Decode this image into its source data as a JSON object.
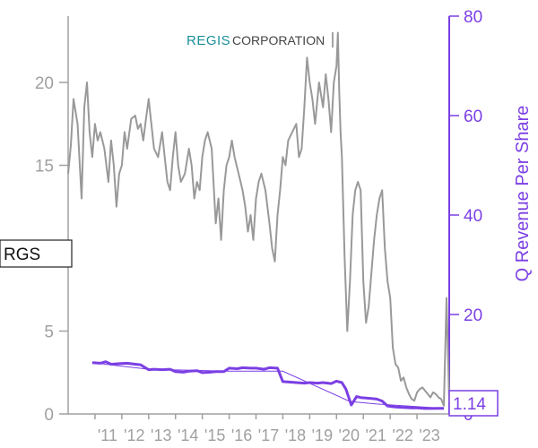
{
  "logo": {
    "brand": "REGIS",
    "suffix": "CORPORATION"
  },
  "ticker": "RGS",
  "colors": {
    "price": "#999999",
    "revenue": "#7b3fe4",
    "axis_left": "#a0a0a0",
    "axis_right": "#7b3fe4"
  },
  "chart_data": {
    "type": "line",
    "title": "",
    "x_tick_labels": [
      "'11",
      "'12",
      "'13",
      "'14",
      "'15",
      "'16",
      "'17",
      "'18",
      "'19",
      "'20",
      "'21",
      "'22",
      "'23"
    ],
    "x_range": [
      2010.0,
      2024.2
    ],
    "left_axis": {
      "label": "",
      "range": [
        0,
        24
      ],
      "ticks": [
        0,
        5,
        15,
        20
      ]
    },
    "right_axis": {
      "label": "Q Revenue Per Share",
      "range": [
        0,
        80
      ],
      "ticks": [
        0,
        20,
        40,
        60,
        80
      ]
    },
    "series": [
      {
        "axis": "left",
        "x": [
          2010.0,
          2010.1,
          2010.2,
          2010.35,
          2010.5,
          2010.6,
          2010.7,
          2010.8,
          2010.9,
          2011.0,
          2011.1,
          2011.2,
          2011.35,
          2011.5,
          2011.6,
          2011.7,
          2011.8,
          2011.9,
          2012.0,
          2012.1,
          2012.2,
          2012.35,
          2012.5,
          2012.6,
          2012.7,
          2012.8,
          2012.9,
          2013.0,
          2013.1,
          2013.2,
          2013.35,
          2013.5,
          2013.6,
          2013.7,
          2013.8,
          2013.9,
          2014.0,
          2014.1,
          2014.2,
          2014.35,
          2014.5,
          2014.6,
          2014.7,
          2014.8,
          2014.9,
          2015.0,
          2015.1,
          2015.2,
          2015.35,
          2015.5,
          2015.6,
          2015.7,
          2015.8,
          2015.9,
          2016.0,
          2016.1,
          2016.2,
          2016.35,
          2016.5,
          2016.6,
          2016.7,
          2016.8,
          2016.9,
          2017.0,
          2017.1,
          2017.2,
          2017.35,
          2017.5,
          2017.6,
          2017.7,
          2017.8,
          2017.9,
          2018.0,
          2018.1,
          2018.2,
          2018.35,
          2018.5,
          2018.6,
          2018.7,
          2018.8,
          2018.9,
          2019.0,
          2019.1,
          2019.2,
          2019.35,
          2019.5,
          2019.6,
          2019.7,
          2019.8,
          2019.9,
          2020.0,
          2020.05,
          2020.1,
          2020.15,
          2020.2,
          2020.3,
          2020.4,
          2020.5,
          2020.6,
          2020.7,
          2020.8,
          2020.9,
          2021.0,
          2021.1,
          2021.2,
          2021.3,
          2021.4,
          2021.5,
          2021.6,
          2021.7,
          2021.8,
          2021.9,
          2022.0,
          2022.1,
          2022.2,
          2022.3,
          2022.4,
          2022.5,
          2022.6,
          2022.7,
          2022.8,
          2022.9,
          2023.0,
          2023.1,
          2023.2,
          2023.3,
          2023.4,
          2023.5,
          2023.6,
          2023.7,
          2023.8,
          2023.9,
          2024.0,
          2024.1,
          2024.2
        ],
        "values": [
          14.5,
          16.2,
          19.0,
          17.5,
          13.0,
          18.5,
          20.0,
          17.0,
          15.5,
          17.5,
          16.5,
          17.0,
          16.0,
          14.0,
          16.5,
          15.0,
          12.5,
          14.5,
          15.0,
          17.0,
          16.0,
          17.8,
          18.0,
          17.2,
          17.5,
          16.5,
          17.8,
          19.0,
          17.5,
          16.0,
          15.5,
          17.0,
          15.5,
          14.0,
          13.5,
          15.5,
          17.0,
          15.0,
          14.0,
          14.5,
          16.0,
          15.0,
          13.0,
          14.0,
          13.5,
          15.5,
          16.5,
          17.0,
          16.0,
          11.5,
          13.0,
          10.5,
          13.5,
          15.0,
          15.5,
          16.5,
          15.5,
          14.5,
          13.5,
          12.5,
          11.0,
          12.0,
          10.5,
          13.0,
          14.0,
          14.5,
          13.5,
          11.5,
          10.0,
          9.2,
          12.0,
          13.5,
          15.5,
          15.0,
          16.5,
          17.0,
          17.5,
          15.5,
          16.0,
          18.5,
          21.5,
          20.0,
          19.0,
          17.5,
          20.0,
          18.5,
          20.5,
          19.0,
          17.0,
          20.0,
          21.0,
          23.0,
          19.5,
          17.0,
          15.5,
          9.5,
          5.0,
          8.0,
          12.0,
          13.5,
          14.0,
          13.5,
          8.0,
          5.5,
          6.5,
          8.5,
          10.5,
          12.0,
          13.0,
          13.5,
          10.0,
          8.0,
          7.0,
          4.0,
          3.0,
          2.8,
          2.0,
          2.2,
          1.6,
          1.2,
          0.9,
          0.8,
          1.3,
          1.5,
          1.6,
          1.4,
          1.2,
          1.0,
          1.3,
          1.2,
          1.0,
          0.9,
          0.5,
          7.0,
          0.7
        ]
      },
      {
        "name": "Q Revenue Per Share",
        "axis": "right",
        "x": [
          2010.9,
          2011.2,
          2011.4,
          2011.6,
          2011.9,
          2012.2,
          2012.5,
          2012.7,
          2013.0,
          2013.2,
          2013.5,
          2013.8,
          2014.0,
          2014.3,
          2014.5,
          2014.8,
          2015.0,
          2015.3,
          2015.5,
          2015.8,
          2016.0,
          2016.3,
          2016.5,
          2016.8,
          2017.0,
          2017.3,
          2017.5,
          2017.8,
          2018.0,
          2018.3,
          2018.5,
          2018.8,
          2019.0,
          2019.3,
          2019.5,
          2019.8,
          2020.0,
          2020.2,
          2020.35,
          2020.55,
          2020.75,
          2020.9,
          2021.1,
          2021.3,
          2021.5,
          2021.7,
          2021.9,
          2022.2,
          2022.5,
          2022.8,
          2023.0,
          2023.3,
          2023.5,
          2023.8,
          2024.0
        ],
        "values": [
          10.3,
          10.2,
          10.5,
          10.0,
          10.1,
          10.2,
          10.0,
          9.9,
          8.9,
          9.0,
          8.9,
          9.0,
          8.5,
          8.4,
          8.6,
          8.7,
          8.3,
          8.4,
          8.5,
          8.5,
          9.2,
          9.1,
          9.3,
          9.2,
          9.2,
          9.0,
          9.3,
          9.2,
          6.5,
          6.4,
          6.3,
          6.2,
          6.3,
          6.2,
          6.3,
          6.1,
          6.6,
          6.3,
          5.0,
          1.8,
          3.5,
          3.3,
          3.2,
          3.1,
          3.0,
          2.6,
          1.6,
          1.4,
          1.3,
          1.2,
          1.2,
          1.1,
          1.1,
          1.14,
          1.14
        ]
      }
    ],
    "trend": {
      "axis": "right",
      "x": [
        2010.9,
        2013.0,
        2016.0,
        2018.0,
        2020.5,
        2021.5,
        2024.0
      ],
      "values": [
        10.3,
        9.0,
        8.6,
        8.6,
        2.5,
        2.0,
        1.14
      ]
    },
    "last_value_label": "1.14"
  }
}
